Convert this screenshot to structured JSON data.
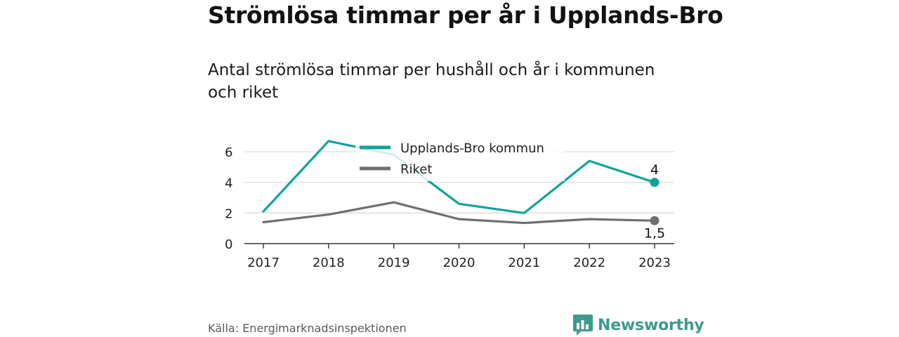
{
  "header": {
    "title": "Strömlösa timmar per år i Upplands-Bro",
    "subtitle": "Antal strömlösa timmar per hushåll och år i kommunen och riket"
  },
  "footer": {
    "source": "Källa: Energimarknadsinspektionen",
    "brand": "Newsworthy",
    "brand_icon": "bar-chart-logo-icon"
  },
  "colors": {
    "series_1": "#12a39a",
    "series_2": "#6f6f73",
    "grid": "#d8d8d8",
    "brand": "#3e9a8d"
  },
  "chart_data": {
    "type": "line",
    "title": "Strömlösa timmar per år i Upplands-Bro",
    "subtitle": "Antal strömlösa timmar per hushåll och år i kommunen och riket",
    "xlabel": "",
    "ylabel": "",
    "x": [
      "2017",
      "2018",
      "2019",
      "2020",
      "2021",
      "2022",
      "2023"
    ],
    "ylim": [
      0,
      7
    ],
    "yticks": [
      "0",
      "2",
      "4",
      "6"
    ],
    "ytick_values": [
      0,
      2,
      4,
      6
    ],
    "grid": true,
    "legend_position": "top-center",
    "series": [
      {
        "name": "Upplands-Bro kommun",
        "values": [
          2.1,
          6.7,
          5.8,
          2.6,
          2.0,
          5.4,
          4.0
        ],
        "end_label": "4"
      },
      {
        "name": "Riket",
        "values": [
          1.4,
          1.9,
          2.7,
          1.6,
          1.35,
          1.6,
          1.5
        ],
        "end_label": "1,5"
      }
    ]
  }
}
